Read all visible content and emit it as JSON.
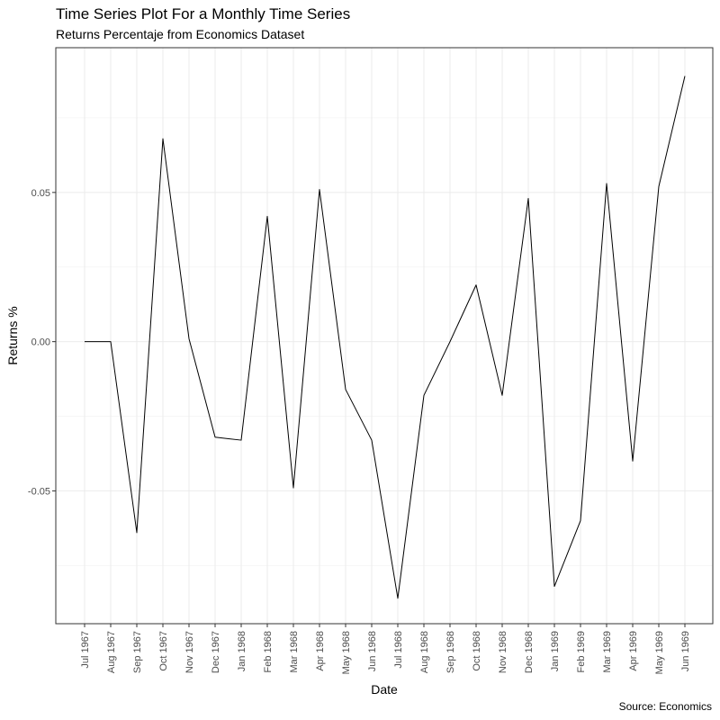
{
  "chart_data": {
    "type": "line",
    "title": "Time Series Plot For a Monthly Time Series",
    "subtitle": "Returns Percentaje from Economics Dataset",
    "caption": "Source: Economics",
    "xlabel": "Date",
    "ylabel": "Returns %",
    "x": [
      "Jul 1967",
      "Aug 1967",
      "Sep 1967",
      "Oct 1967",
      "Nov 1967",
      "Dec 1967",
      "Jan 1968",
      "Feb 1968",
      "Mar 1968",
      "Apr 1968",
      "May 1968",
      "Jun 1968",
      "Jul 1968",
      "Aug 1968",
      "Sep 1968",
      "Oct 1968",
      "Nov 1968",
      "Dec 1968",
      "Jan 1969",
      "Feb 1969",
      "Mar 1969",
      "Apr 1969",
      "May 1969",
      "Jun 1969"
    ],
    "series": [
      {
        "values": [
          0.0,
          0.0,
          -0.064,
          0.068,
          0.001,
          -0.032,
          -0.033,
          0.042,
          -0.049,
          0.051,
          -0.016,
          -0.033,
          -0.086,
          -0.018,
          0.0,
          0.019,
          -0.018,
          0.048,
          -0.082,
          -0.06,
          0.053,
          -0.04,
          0.052,
          0.089
        ],
        "color": "#000000"
      }
    ],
    "yticks": [
      -0.05,
      0.0,
      0.05
    ],
    "ytick_labels": [
      "-0.05",
      "0.00",
      "0.05"
    ],
    "ylim": [
      -0.0945,
      0.0985
    ],
    "grid": true,
    "theme": "bw"
  }
}
